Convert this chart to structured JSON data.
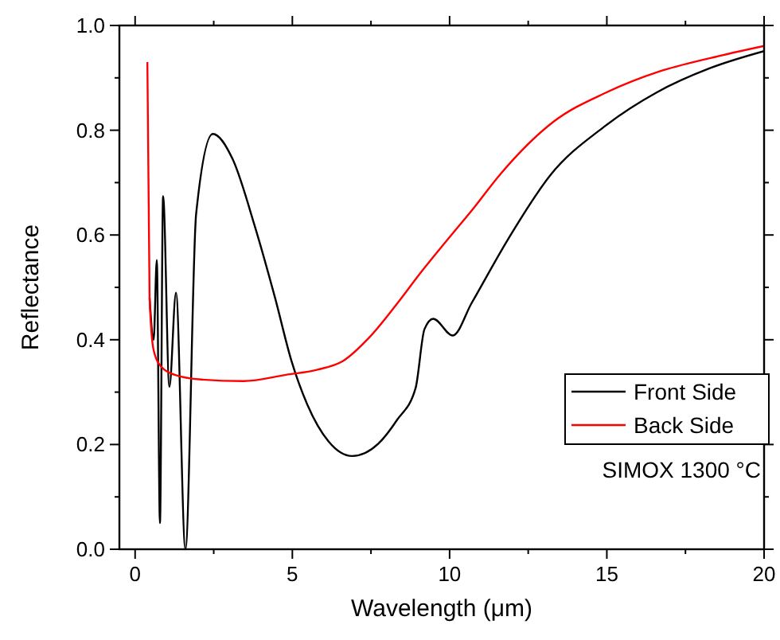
{
  "chart_data": {
    "type": "line",
    "xlabel": "Wavelength (μm)",
    "ylabel": "Reflectance",
    "xlim": [
      -0.5,
      20
    ],
    "ylim": [
      0,
      1
    ],
    "xticks": [
      0,
      {
        "value": 2.5,
        "label": null
      },
      5,
      {
        "value": 7.5,
        "label": null
      },
      10,
      {
        "value": 12.5,
        "label": null
      },
      15,
      {
        "value": 17.5,
        "label": null
      },
      20
    ],
    "yticks": [
      "0.0",
      {
        "value": 0.1,
        "label": null
      },
      {
        "value": 0.2,
        "label": "0.2"
      },
      {
        "value": 0.3,
        "label": null
      },
      {
        "value": 0.4,
        "label": "0.4"
      },
      {
        "value": 0.5,
        "label": null
      },
      {
        "value": 0.6,
        "label": "0.6"
      },
      {
        "value": 0.7,
        "label": null
      },
      {
        "value": 0.8,
        "label": "0.8"
      },
      {
        "value": 0.9,
        "label": null
      },
      {
        "value": 1,
        "label": "1.0"
      }
    ],
    "legend": "right",
    "grid": false,
    "line_style": "solid",
    "annotations": [
      "SIMOX 1300 °C"
    ],
    "series": [
      {
        "name": "Front Side",
        "color": "#000000",
        "x": [
          0.46,
          0.59,
          0.69,
          0.79,
          0.89,
          1.09,
          1.3,
          1.6,
          1.94,
          2.47,
          3.1,
          3.79,
          4.45,
          4.97,
          5.47,
          6.15,
          6.9,
          7.74,
          8.33,
          8.92,
          9.2,
          9.48,
          10.1,
          10.7,
          11.87,
          13.2,
          14.9,
          16.58,
          18.26,
          20
        ],
        "values": [
          0.48,
          0.4,
          0.552,
          0.05,
          0.674,
          0.31,
          0.49,
          0.0,
          0.64,
          0.793,
          0.745,
          0.62,
          0.48,
          0.36,
          0.277,
          0.206,
          0.178,
          0.202,
          0.247,
          0.308,
          0.42,
          0.44,
          0.408,
          0.47,
          0.593,
          0.714,
          0.806,
          0.872,
          0.918,
          0.951
        ]
      },
      {
        "name": "Back Side",
        "color": "#ff0000",
        "x": [
          0.39,
          0.46,
          0.59,
          0.84,
          1.26,
          2.1,
          3.45,
          4.8,
          5.8,
          6.6,
          7.44,
          8.28,
          9.12,
          9.96,
          10.8,
          11.6,
          13.3,
          14.98,
          16.66,
          18.3,
          20
        ],
        "values": [
          0.93,
          0.48,
          0.38,
          0.348,
          0.333,
          0.324,
          0.321,
          0.333,
          0.343,
          0.359,
          0.404,
          0.465,
          0.531,
          0.593,
          0.654,
          0.715,
          0.816,
          0.872,
          0.912,
          0.938,
          0.961
        ]
      }
    ]
  }
}
